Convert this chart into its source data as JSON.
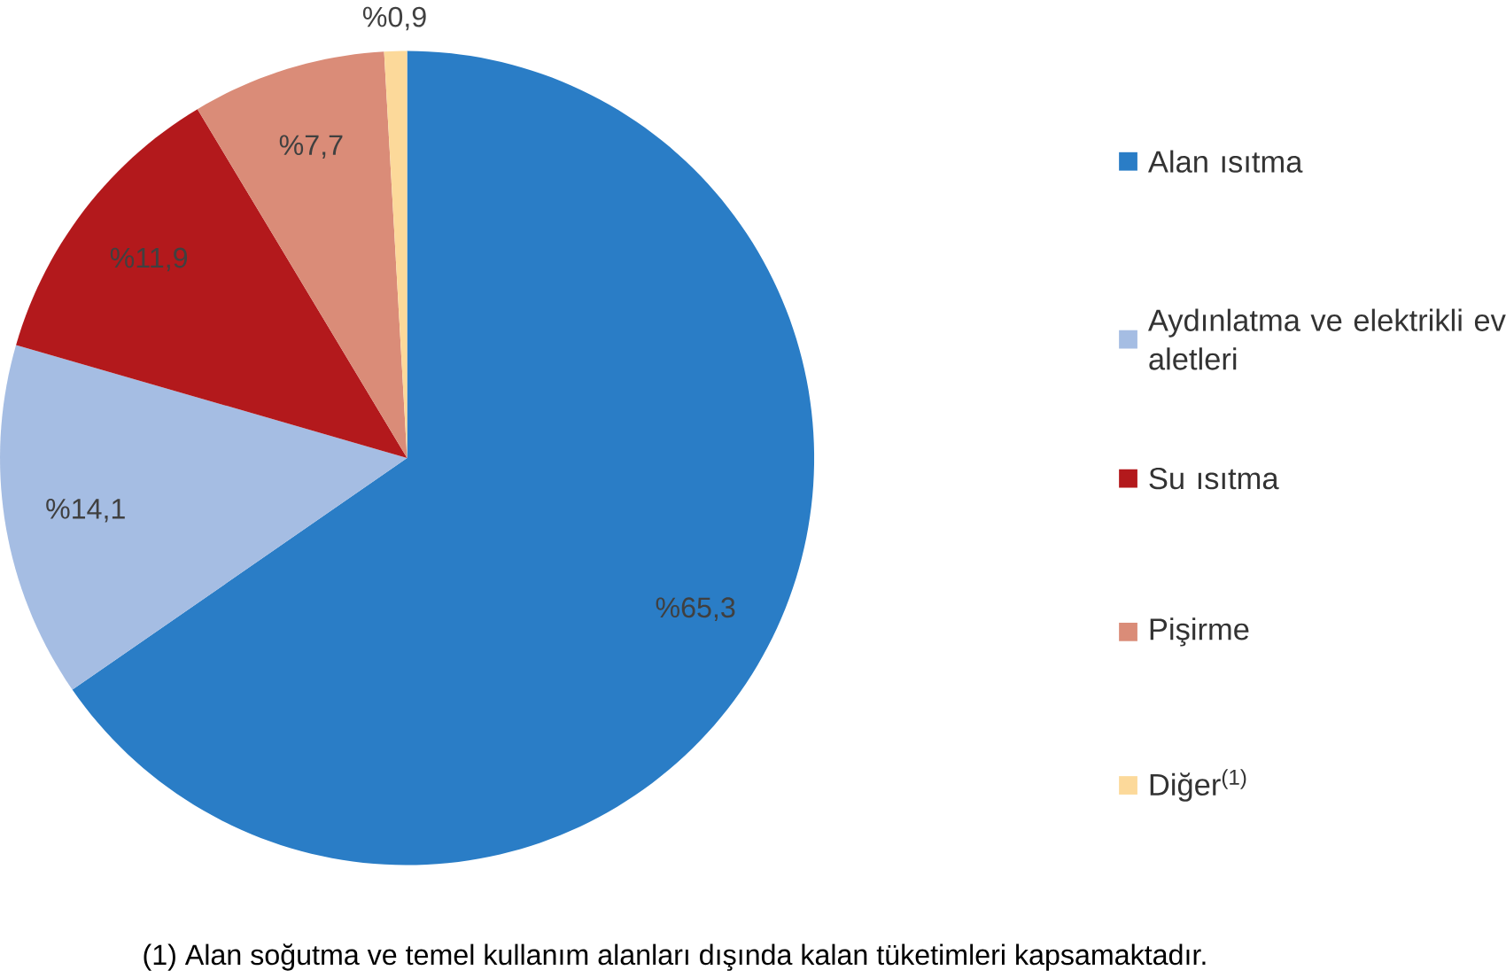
{
  "chart_data": {
    "type": "pie",
    "categories": [
      "Alan ısıtma",
      "Aydınlatma ve elektrikli ev aletleri",
      "Su ısıtma",
      "Pişirme",
      "Diğer$^{(1)}$"
    ],
    "values": [
      65.3,
      14.1,
      11.9,
      7.7,
      0.9
    ],
    "colors": [
      "#2a7dc6",
      "#a5bde3",
      "#b3191c",
      "#da8c78",
      "#fcd99a"
    ],
    "value_labels": [
      "%65,3",
      "%14,1",
      "%11,9",
      "%7,7",
      "%0,9"
    ],
    "legend": "right",
    "annotations": [
      "(1) Alan soğutma ve temel kullanım alanları dışında kalan tüketimleri kapsamaktadır."
    ]
  }
}
